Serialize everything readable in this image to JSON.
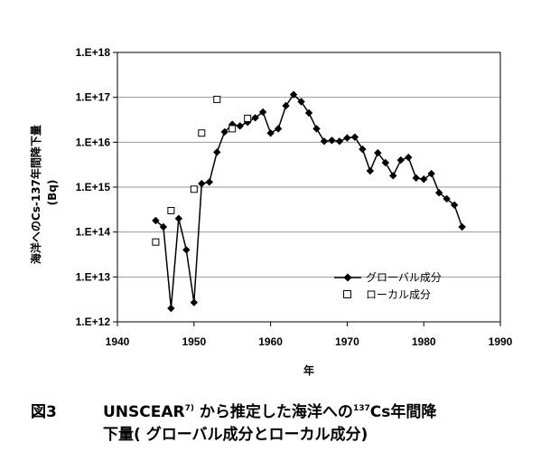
{
  "chart_data": {
    "type": "line",
    "ylabel_lines": [
      "海洋へのCs-137年間降下量",
      "(Bq)"
    ],
    "xlabel": "年",
    "xlim": [
      1940,
      1990
    ],
    "x_ticks": [
      1940,
      1950,
      1960,
      1970,
      1980,
      1990
    ],
    "y_scale": "log",
    "ylim": [
      1000000000000.0,
      1e+18
    ],
    "y_tick_labels": [
      "1.E+12",
      "1.E+13",
      "1.E+14",
      "1.E+15",
      "1.E+16",
      "1.E+17",
      "1.E+18"
    ],
    "grid": "horizontal",
    "legend_position": "bottom-right",
    "series": [
      {
        "name": "グローバル成分",
        "style": "line-diamond",
        "color": "#000000",
        "x": [
          1945,
          1946,
          1947,
          1948,
          1949,
          1950,
          1951,
          1952,
          1953,
          1954,
          1955,
          1956,
          1957,
          1958,
          1959,
          1960,
          1961,
          1962,
          1963,
          1964,
          1965,
          1966,
          1967,
          1968,
          1969,
          1970,
          1971,
          1972,
          1973,
          1974,
          1975,
          1976,
          1977,
          1978,
          1979,
          1980,
          1981,
          1982,
          1983,
          1984,
          1985
        ],
        "y": [
          180000000000000.0,
          130000000000000.0,
          2000000000000.0,
          200000000000000.0,
          40000000000000.0,
          2700000000000.0,
          1200000000000000.0,
          1300000000000000.0,
          6000000000000000.0,
          1.7e+16,
          2.5e+16,
          2.3e+16,
          2.8e+16,
          3.5e+16,
          4.7e+16,
          1.6e+16,
          2e+16,
          6.5e+16,
          1.15e+17,
          8e+16,
          4.5e+16,
          2e+16,
          1.05e+16,
          1.1e+16,
          1.05e+16,
          1.25e+16,
          1.3e+16,
          7000000000000000.0,
          2300000000000000.0,
          5800000000000000.0,
          3500000000000000.0,
          1800000000000000.0,
          4000000000000000.0,
          4600000000000000.0,
          1600000000000000.0,
          1500000000000000.0,
          2000000000000000.0,
          750000000000000.0,
          550000000000000.0,
          400000000000000.0,
          130000000000000.0
        ]
      },
      {
        "name": "ローカル成分",
        "style": "open-square",
        "color": "#000000",
        "x": [
          1945,
          1947,
          1950,
          1951,
          1953,
          1955,
          1957
        ],
        "y": [
          60000000000000.0,
          300000000000000.0,
          900000000000000.0,
          1.6e+16,
          9e+16,
          2e+16,
          3.4e+16
        ]
      }
    ]
  },
  "caption": {
    "figure_number": "図3",
    "line1_before_sup": "UNSCEAR",
    "sup_ref": "7)",
    "line1_mid": " から推定した海洋への",
    "sup_mass": "137",
    "line1_after": "Cs年間降",
    "line2": "下量( グローバル成分とローカル成分)"
  }
}
